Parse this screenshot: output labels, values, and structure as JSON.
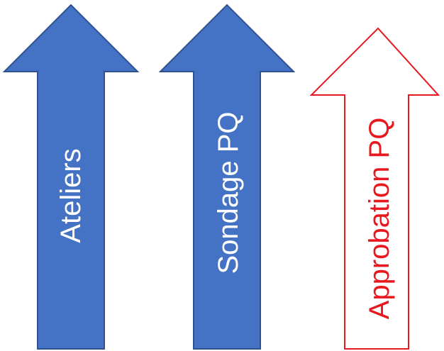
{
  "arrows": [
    {
      "label": "Ateliers",
      "style": "filled",
      "fill": "#4472C4",
      "stroke": "#2F528F",
      "text_color": "#FFFFFF"
    },
    {
      "label": "Sondage PQ",
      "style": "filled",
      "fill": "#4472C4",
      "stroke": "#2F528F",
      "text_color": "#FFFFFF"
    },
    {
      "label": "Approbation PQ",
      "style": "outline",
      "fill": "#FFFFFF",
      "stroke": "#E8181E",
      "text_color": "#E8181E"
    }
  ]
}
